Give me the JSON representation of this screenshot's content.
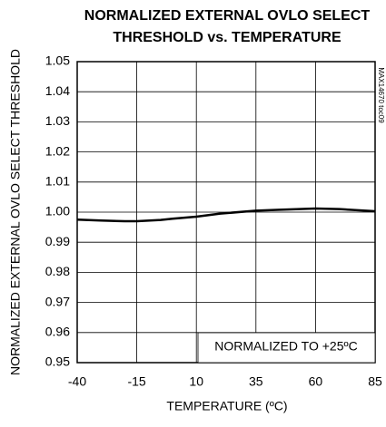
{
  "chart_data": {
    "type": "line",
    "title_lines": [
      "NORMALIZED EXTERNAL OVLO SELECT",
      "THRESHOLD vs. TEMPERATURE"
    ],
    "x_label": "TEMPERATURE (ºC)",
    "y_label": "NORMALIZED EXTERNAL OVLO SELECT THRESHOLD",
    "annotation": "NORMALIZED TO +25ºC",
    "figure_code": "MAX14670 toc09",
    "x": [
      -40,
      -30,
      -20,
      -15,
      -5,
      0,
      10,
      20,
      35,
      45,
      60,
      70,
      85
    ],
    "series": [
      {
        "name": "threshold",
        "color": "#000000",
        "values": [
          0.9975,
          0.9972,
          0.997,
          0.997,
          0.9974,
          0.9978,
          0.9985,
          0.9995,
          1.0005,
          1.0008,
          1.0012,
          1.001,
          1.0003
        ]
      }
    ],
    "xlim": [
      -40,
      85
    ],
    "xticks": [
      -40,
      -15,
      10,
      35,
      60,
      85
    ],
    "ylim": [
      0.95,
      1.05
    ],
    "yticks": [
      0.95,
      0.96,
      0.97,
      0.98,
      0.99,
      {
        "value": 1,
        "label": "1.00"
      },
      1.01,
      1.02,
      1.03,
      1.04,
      1.05
    ],
    "grid": true
  }
}
